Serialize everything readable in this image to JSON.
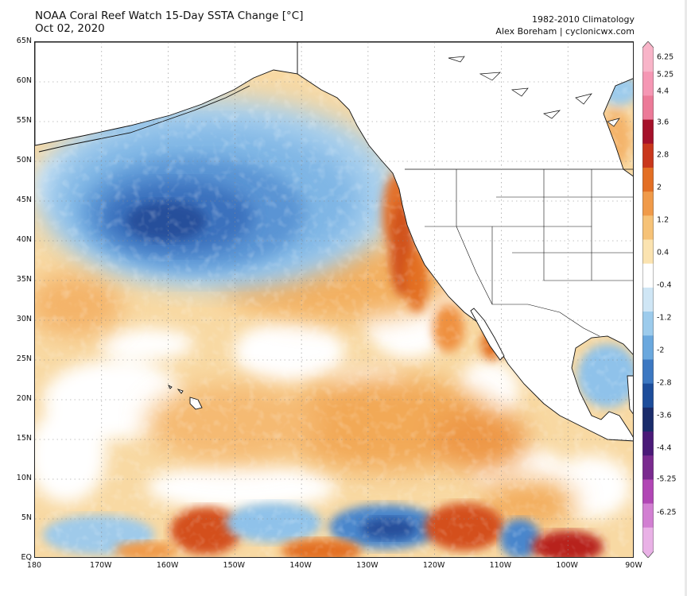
{
  "header": {
    "title": "NOAA Coral Reef Watch 15-Day SSTA Change [°C]",
    "date": "Oct 02, 2020",
    "climatology": "1982-2010 Climatology",
    "credit": "Alex Boreham | cyclonicwx.com"
  },
  "map": {
    "lat_labels": [
      "65N",
      "60N",
      "55N",
      "50N",
      "45N",
      "40N",
      "35N",
      "30N",
      "25N",
      "20N",
      "15N",
      "10N",
      "5N",
      "EQ"
    ],
    "lon_labels": [
      "180",
      "170W",
      "160W",
      "150W",
      "140W",
      "130W",
      "120W",
      "110W",
      "100W",
      "90W"
    ],
    "lat_range": [
      0,
      65
    ],
    "lon_range": [
      -180,
      -90
    ],
    "anomaly_regions": [
      {
        "name": "north-pacific-cold-anomaly",
        "value": -3.6
      },
      {
        "name": "gulf-of-alaska-cool",
        "value": -1.2
      },
      {
        "name": "california-coastal-warm",
        "value": 2.8
      },
      {
        "name": "subtropical-east-pacific-warm",
        "value": 0.8
      },
      {
        "name": "mexico-pacific-coast-warm",
        "value": 1.6
      },
      {
        "name": "gulf-of-mexico-cool",
        "value": -1.2
      },
      {
        "name": "equatorial-cold-tongue",
        "value": -2.4
      },
      {
        "name": "equatorial-warm-110w",
        "value": 3.2
      },
      {
        "name": "equatorial-warm-100w",
        "value": 3.6
      },
      {
        "name": "equatorial-warm-155w",
        "value": 2.4
      }
    ]
  },
  "colorbar": {
    "labels": [
      "6.25",
      "5.25",
      "4.4",
      "3.6",
      "2.8",
      "2",
      "1.2",
      "0.4",
      "-0.4",
      "-1.2",
      "-2",
      "-2.8",
      "-3.6",
      "-4.4",
      "-5.25",
      "-6.25"
    ],
    "colors": [
      "#f8b4c8",
      "#f597b4",
      "#ec7a98",
      "#a5112a",
      "#c9371c",
      "#e36f24",
      "#f09a49",
      "#f6c277",
      "#fbe3b0",
      "#ffffff",
      "#cfe6f5",
      "#9ccbec",
      "#6aa8de",
      "#3c78c2",
      "#1d4d9b",
      "#1a2c6b",
      "#4a1a78",
      "#7a2a8f",
      "#b146b5",
      "#d27fd2",
      "#e9b1e6"
    ]
  }
}
